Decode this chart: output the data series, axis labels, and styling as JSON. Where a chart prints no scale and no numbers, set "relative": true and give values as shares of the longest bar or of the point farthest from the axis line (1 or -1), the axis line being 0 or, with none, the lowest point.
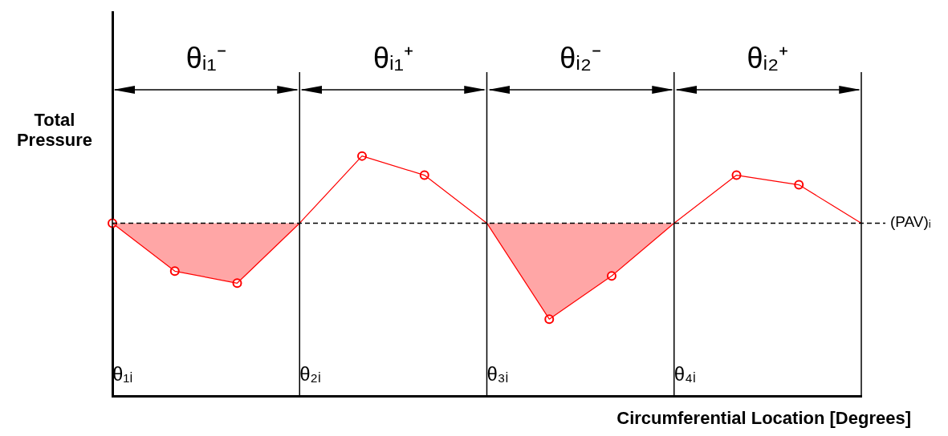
{
  "chart_data": {
    "type": "line",
    "relative": true,
    "xlabel": "Circumferential Location [Degrees]",
    "ylabel": "Total Pressure",
    "tick_labels": "x",
    "grid": false,
    "legend": false,
    "categories": [
      "θ₁ᵢ",
      null,
      null,
      "θ₂ᵢ",
      null,
      null,
      "θ₃ᵢ",
      null,
      null,
      "θ₄ᵢ",
      null,
      null,
      null
    ],
    "series": [
      {
        "color": "#ff0000",
        "marker": "none",
        "values": [
          0.72,
          0.52,
          0.47,
          0.72,
          1,
          0.92,
          0.72,
          0.32,
          0.5,
          0.72,
          0.92,
          0.88,
          0.72
        ],
        "lower": [
          0.72,
          0.52,
          0.47,
          0.72,
          null,
          null,
          0.72,
          0.32,
          0.5,
          0.72,
          null,
          null,
          null
        ],
        "upper": [
          0.72,
          0.72,
          0.72,
          0.72,
          null,
          null,
          0.72,
          0.72,
          0.72,
          0.72,
          null,
          null,
          null
        ]
      },
      {
        "type": "scatter",
        "color": "#ff0000",
        "marker": "circle",
        "values": [
          0.72,
          0.52,
          0.47,
          null,
          1,
          0.92,
          null,
          0.32,
          0.5,
          null,
          0.92,
          0.88,
          null
        ]
      }
    ],
    "ref_lines": [
      {
        "axis": "y",
        "value": 0.72,
        "label": "(PAV)ᵢ",
        "color": "#000000",
        "line_style": "dashed"
      },
      {
        "axis": "x",
        "value": "θ₁ᵢ",
        "color": "#000000"
      },
      {
        "axis": "x",
        "value": "θ₂ᵢ",
        "color": "#000000"
      },
      {
        "axis": "x",
        "value": "θ₃ᵢ",
        "color": "#000000"
      },
      {
        "axis": "x",
        "value": "θ₄ᵢ",
        "color": "#000000"
      }
    ],
    "annotations": [
      "θᵢ₁⁻",
      "θᵢ₁⁺",
      "θᵢ₂⁻",
      "θᵢ₂⁺"
    ]
  }
}
